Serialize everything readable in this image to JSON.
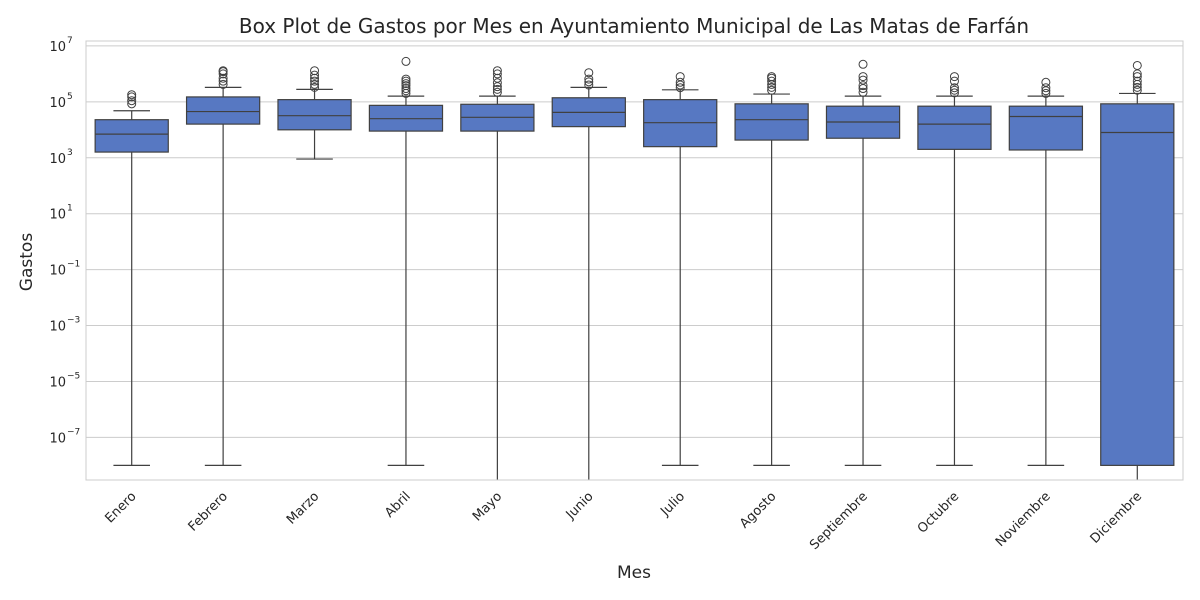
{
  "chart_data": {
    "type": "box",
    "title": "Box Plot de Gastos por Mes en Ayuntamiento Municipal de Las Matas de Farfán",
    "xlabel": "Mes",
    "ylabel": "Gastos",
    "yscale": "log",
    "ylim": [
      3e-09,
      15000000.0
    ],
    "yticks": [
      {
        "base": "10",
        "exp": "7",
        "value": 10000000.0
      },
      {
        "base": "10",
        "exp": "5",
        "value": 100000.0
      },
      {
        "base": "10",
        "exp": "3",
        "value": 1000.0
      },
      {
        "base": "10",
        "exp": "1",
        "value": 10.0
      },
      {
        "base": "10",
        "exp": "−1",
        "value": 0.1
      },
      {
        "base": "10",
        "exp": "−3",
        "value": 0.001
      },
      {
        "base": "10",
        "exp": "−5",
        "value": 1e-05
      },
      {
        "base": "10",
        "exp": "−7",
        "value": 1e-07
      }
    ],
    "grid": true,
    "box_color": "#5778c2",
    "line_color": "#404040",
    "categories": [
      "Enero",
      "Febrero",
      "Marzo",
      "Abril",
      "Mayo",
      "Junio",
      "Julio",
      "Agosto",
      "Septiembre",
      "Octubre",
      "Noviembre",
      "Diciembre"
    ],
    "boxes": [
      {
        "whislo": 1e-08,
        "q1": 1600,
        "med": 7000,
        "q3": 23000,
        "whishi": 48000,
        "fliers": [
          85000,
          110000,
          150000,
          180000
        ]
      },
      {
        "whislo": 1e-08,
        "q1": 16000,
        "med": 45000,
        "q3": 150000,
        "whishi": 330000,
        "fliers": [
          420000,
          550000,
          700000,
          1000000,
          1200000,
          1300000
        ]
      },
      {
        "whislo": 900,
        "q1": 10000,
        "med": 32000,
        "q3": 120000,
        "whishi": 280000,
        "fliers": [
          330000,
          420000,
          550000,
          700000,
          900000,
          1300000
        ]
      },
      {
        "whislo": 1e-08,
        "q1": 9000,
        "med": 25000,
        "q3": 75000,
        "whishi": 160000,
        "fliers": [
          200000,
          250000,
          300000,
          380000,
          450000,
          550000,
          650000,
          2800000
        ]
      },
      {
        "whislo": 3e-09,
        "q1": 9000,
        "med": 28000,
        "q3": 82000,
        "whishi": 160000,
        "fliers": [
          220000,
          280000,
          350000,
          480000,
          700000,
          1000000,
          1300000
        ]
      },
      {
        "whislo": 3e-09,
        "q1": 13000,
        "med": 42000,
        "q3": 140000,
        "whishi": 330000,
        "fliers": [
          400000,
          520000,
          650000,
          1100000
        ]
      },
      {
        "whislo": 1e-08,
        "q1": 2500,
        "med": 18000,
        "q3": 120000,
        "whishi": 270000,
        "fliers": [
          320000,
          400000,
          500000,
          800000
        ]
      },
      {
        "whislo": 1e-08,
        "q1": 4300,
        "med": 23000,
        "q3": 85000,
        "whishi": 190000,
        "fliers": [
          260000,
          330000,
          420000,
          550000,
          700000,
          800000
        ]
      },
      {
        "whislo": 1e-08,
        "q1": 5000,
        "med": 19000,
        "q3": 70000,
        "whishi": 160000,
        "fliers": [
          220000,
          300000,
          380000,
          600000,
          800000,
          2200000
        ]
      },
      {
        "whislo": 1e-08,
        "q1": 2000,
        "med": 16000,
        "q3": 70000,
        "whishi": 160000,
        "fliers": [
          210000,
          260000,
          320000,
          550000,
          800000
        ]
      },
      {
        "whislo": 1e-08,
        "q1": 1900,
        "med": 30000,
        "q3": 70000,
        "whishi": 160000,
        "fliers": [
          200000,
          250000,
          320000,
          500000
        ]
      },
      {
        "whislo": 3e-09,
        "q1": 1e-08,
        "med": 8000,
        "q3": 85000,
        "whishi": 200000,
        "fliers": [
          260000,
          330000,
          420000,
          550000,
          800000,
          1000000,
          2000000
        ]
      }
    ]
  }
}
